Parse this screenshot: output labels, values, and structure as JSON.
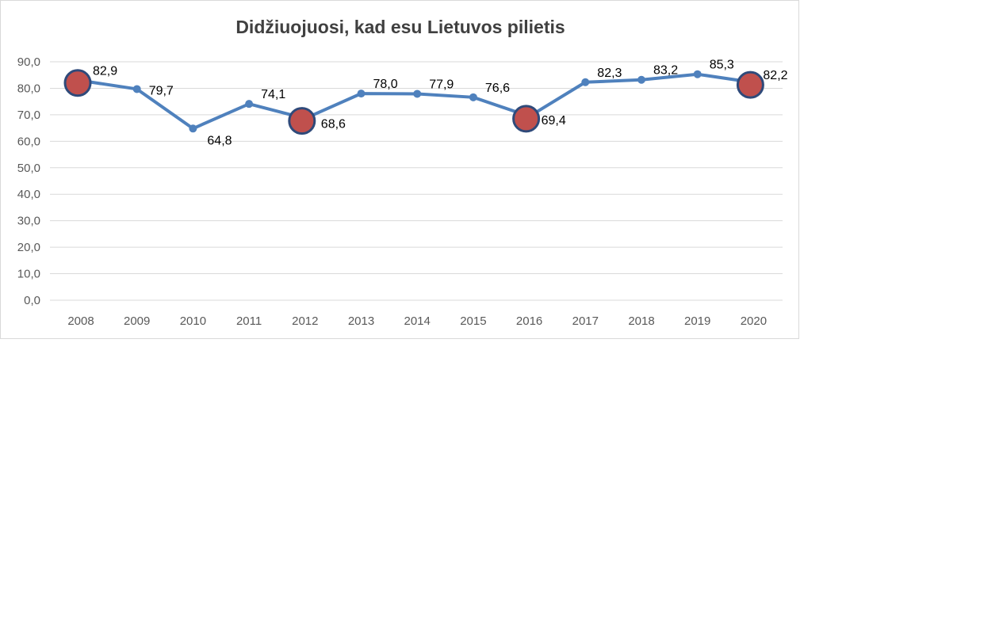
{
  "chart_data": {
    "type": "line",
    "title": "Didžiuojuosi, kad esu Lietuvos pilietis",
    "xlabel": "",
    "ylabel": "",
    "ylim": [
      0,
      90
    ],
    "ytick_labels": [
      "0,0",
      "10,0",
      "20,0",
      "30,0",
      "40,0",
      "50,0",
      "60,0",
      "70,0",
      "80,0",
      "90,0"
    ],
    "grid": true,
    "legend": "none",
    "categories": [
      "2008",
      "2009",
      "2010",
      "2011",
      "2012",
      "2013",
      "2014",
      "2015",
      "2016",
      "2017",
      "2018",
      "2019",
      "2020"
    ],
    "series": [
      {
        "values": [
          82.9,
          79.7,
          64.8,
          74.1,
          68.6,
          78.0,
          77.9,
          76.6,
          69.4,
          82.3,
          83.2,
          85.3,
          82.2
        ],
        "labels": [
          "82,9",
          "79,7",
          "64,8",
          "74,1",
          "68,6",
          "78,0",
          "77,9",
          "76,6",
          "69,4",
          "82,3",
          "83,2",
          "85,3",
          "82,2"
        ],
        "highlighted_categories": [
          "2008",
          "2012",
          "2016",
          "2020"
        ]
      }
    ],
    "colors": {
      "line": "#4f81bd",
      "highlight_fill": "#c0504d",
      "highlight_stroke": "#2f4a7a",
      "grid": "#d9d9d9"
    }
  }
}
